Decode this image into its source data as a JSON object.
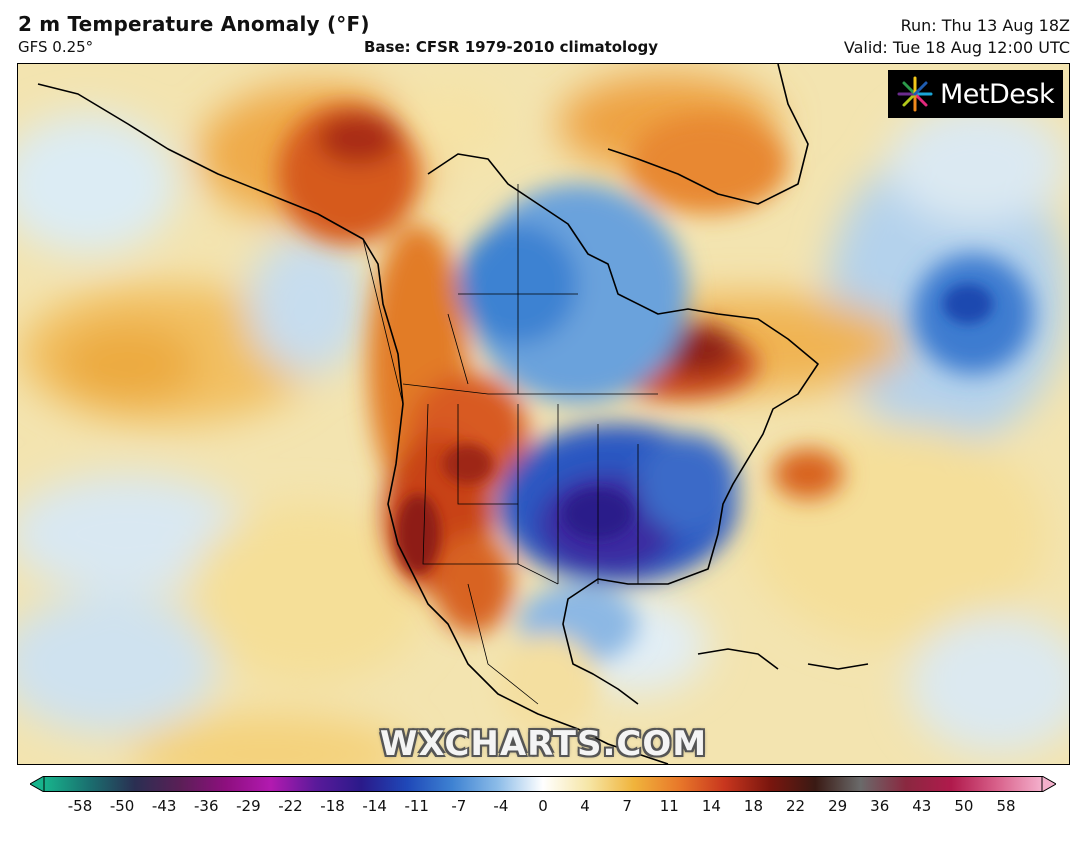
{
  "header": {
    "title": "2 m Temperature Anomaly (°F)",
    "model": "GFS 0.25°",
    "base": "Base: CFSR 1979-2010 climatology",
    "run": "Run: Thu 13 Aug 18Z",
    "valid": "Valid: Tue 18 Aug 12:00 UTC"
  },
  "logo": {
    "text": "MetDesk"
  },
  "watermark": {
    "text": "WXCHARTS.COM"
  },
  "colorbar": {
    "ticks": [
      "-58",
      "-50",
      "-43",
      "-36",
      "-29",
      "-22",
      "-18",
      "-14",
      "-11",
      "-7",
      "-4",
      "0",
      "4",
      "7",
      "11",
      "14",
      "18",
      "22",
      "29",
      "36",
      "43",
      "50",
      "58"
    ],
    "colors": [
      "#17b48c",
      "#1a6f6f",
      "#2a2f52",
      "#5a1f56",
      "#8d0f7e",
      "#b21ab0",
      "#5a1a9a",
      "#2a1a8a",
      "#1f48b8",
      "#3e82d2",
      "#8cbce8",
      "#ffffff",
      "#f6e6a6",
      "#f0b43c",
      "#e8782a",
      "#c8361e",
      "#7a160e",
      "#3a1a14",
      "#6a6a6a",
      "#8a2840",
      "#b01a4c",
      "#d8608a",
      "#f4b0cc"
    ]
  }
}
